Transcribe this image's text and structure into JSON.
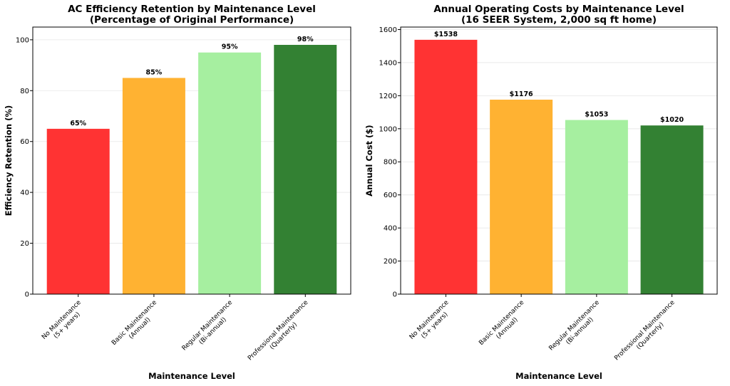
{
  "chart_data": [
    {
      "type": "bar",
      "title": "AC Efficiency Retention by Maintenance Level\n(Percentage of Original Performance)",
      "xlabel": "Maintenance Level",
      "ylabel": "Efficiency Retention (%)",
      "categories": [
        "No Maintenance\n(5+ years)",
        "Basic Maintenance\n(Annual)",
        "Regular Maintenance\n(Bi-annual)",
        "Professional Maintenance\n(Quarterly)"
      ],
      "values": [
        65,
        85,
        95,
        98
      ],
      "value_labels": [
        "65%",
        "85%",
        "95%",
        "98%"
      ],
      "colors": [
        "#ff3333",
        "#ffb232",
        "#a6efa0",
        "#338133"
      ],
      "ylim": [
        0,
        105
      ],
      "yticks": [
        0,
        20,
        40,
        60,
        80,
        100
      ],
      "grid": true
    },
    {
      "type": "bar",
      "title": "Annual Operating Costs by Maintenance Level\n(16 SEER System, 2,000 sq ft home)",
      "xlabel": "Maintenance Level",
      "ylabel": "Annual Cost ($)",
      "categories": [
        "No Maintenance\n(5+ years)",
        "Basic Maintenance\n(Annual)",
        "Regular Maintenance\n(Bi-annual)",
        "Professional Maintenance\n(Quarterly)"
      ],
      "values": [
        1538,
        1176,
        1053,
        1020
      ],
      "value_labels": [
        "$1538",
        "$1176",
        "$1053",
        "$1020"
      ],
      "colors": [
        "#ff3333",
        "#ffb232",
        "#a6efa0",
        "#338133"
      ],
      "ylim": [
        0,
        1615
      ],
      "yticks": [
        0,
        200,
        400,
        600,
        800,
        1000,
        1200,
        1400,
        1600
      ],
      "grid": true
    }
  ]
}
